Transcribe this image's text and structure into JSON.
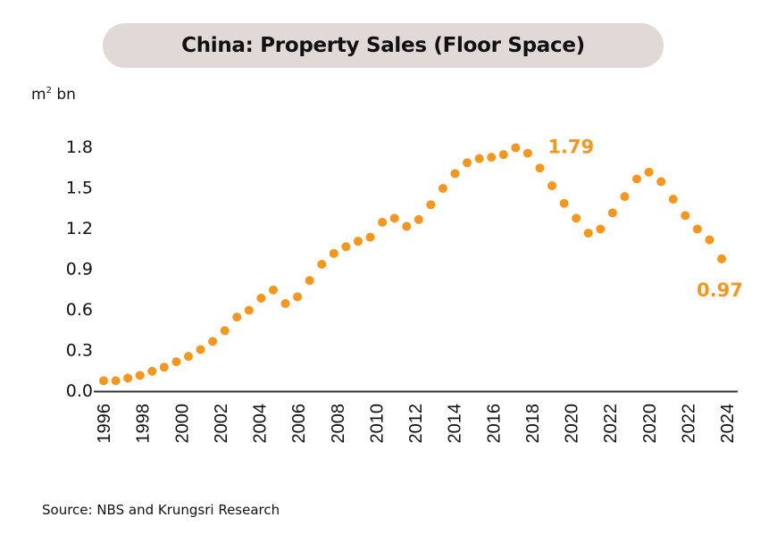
{
  "colors": {
    "accent": "#f7961c",
    "title_bg": "#e0d9d8",
    "axis": "#333333"
  },
  "header": {
    "title": "China: Property Sales (Floor Space)"
  },
  "unit_label": {
    "base": "m",
    "sup": "2",
    "suffix": " bn"
  },
  "footer": {
    "source": "Source: NBS and Krungsri Research"
  },
  "chart_data": {
    "type": "scatter",
    "title": "China: Property Sales (Floor Space)",
    "xlabel": "",
    "ylabel": "m2 bn",
    "ylim": [
      0,
      1.8
    ],
    "yticks": [
      "0.0",
      "0.3",
      "0.6",
      "0.9",
      "1.2",
      "1.5",
      "1.8"
    ],
    "ytick_values": [
      0,
      0.3,
      0.6,
      0.9,
      1.2,
      1.5,
      1.8
    ],
    "xtick_labels": [
      "1996",
      "1998",
      "2000",
      "2002",
      "2004",
      "2006",
      "2008",
      "2010",
      "2012",
      "2014",
      "2016",
      "2018",
      "2020",
      "2022",
      "2020",
      "2022",
      "2024"
    ],
    "grid": false,
    "series": [
      {
        "name": "Property sales floor space",
        "values": [
          0.07,
          0.07,
          0.09,
          0.11,
          0.14,
          0.17,
          0.21,
          0.25,
          0.3,
          0.36,
          0.44,
          0.54,
          0.59,
          0.68,
          0.74,
          0.64,
          0.69,
          0.81,
          0.93,
          1.01,
          1.06,
          1.1,
          1.13,
          1.24,
          1.27,
          1.21,
          1.26,
          1.37,
          1.49,
          1.6,
          1.68,
          1.71,
          1.72,
          1.74,
          1.79,
          1.75,
          1.64,
          1.51,
          1.38,
          1.27,
          1.16,
          1.19,
          1.31,
          1.43,
          1.56,
          1.61,
          1.54,
          1.41,
          1.29,
          1.19,
          1.11,
          0.97
        ]
      }
    ],
    "annotations": [
      {
        "text": "1.79",
        "point_index": 34
      },
      {
        "text": "0.97",
        "point_index": 51
      }
    ]
  }
}
